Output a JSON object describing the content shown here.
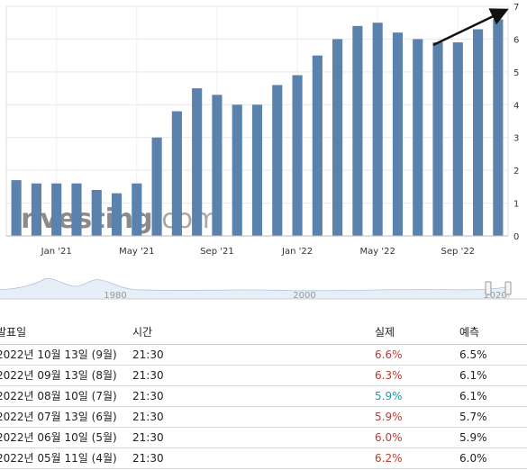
{
  "chart_data": {
    "type": "bar",
    "values": [
      1.7,
      1.6,
      1.6,
      1.6,
      1.4,
      1.3,
      1.6,
      3.0,
      3.8,
      4.5,
      4.3,
      4.0,
      4.0,
      4.6,
      4.9,
      5.5,
      6.0,
      6.4,
      6.5,
      6.2,
      6.0,
      5.9,
      5.9,
      6.3,
      6.6
    ],
    "xticks": [
      "Jan '21",
      "May '21",
      "Sep '21",
      "Jan '22",
      "May '22",
      "Sep '22"
    ],
    "xtick_index": [
      2,
      6,
      10,
      14,
      18,
      22
    ],
    "yticks": [
      "0",
      "1",
      "2",
      "3",
      "4",
      "5",
      "6",
      "7"
    ],
    "ylim": [
      0,
      7
    ],
    "bar_color": "#5a82ad",
    "grid": true,
    "watermark": "Investing.com"
  },
  "navigator": {
    "labels": [
      "1980",
      "2000",
      "2020"
    ]
  },
  "table": {
    "headers": {
      "date": "발표일",
      "time": "시간",
      "actual": "실제",
      "forecast": "예측"
    },
    "rows": [
      {
        "date": "2022년 10월 13일 (9월)",
        "time": "21:30",
        "actual": "6.6%",
        "forecast": "6.5%",
        "status": "red"
      },
      {
        "date": "2022년 09월 13일 (8월)",
        "time": "21:30",
        "actual": "6.3%",
        "forecast": "6.1%",
        "status": "red"
      },
      {
        "date": "2022년 08월 10일 (7월)",
        "time": "21:30",
        "actual": "5.9%",
        "forecast": "6.1%",
        "status": "green"
      },
      {
        "date": "2022년 07월 13일 (6월)",
        "time": "21:30",
        "actual": "5.9%",
        "forecast": "5.7%",
        "status": "red"
      },
      {
        "date": "2022년 06월 10일 (5월)",
        "time": "21:30",
        "actual": "6.0%",
        "forecast": "5.9%",
        "status": "red"
      },
      {
        "date": "2022년 05월 11일 (4월)",
        "time": "21:30",
        "actual": "6.2%",
        "forecast": "6.0%",
        "status": "red"
      }
    ]
  }
}
